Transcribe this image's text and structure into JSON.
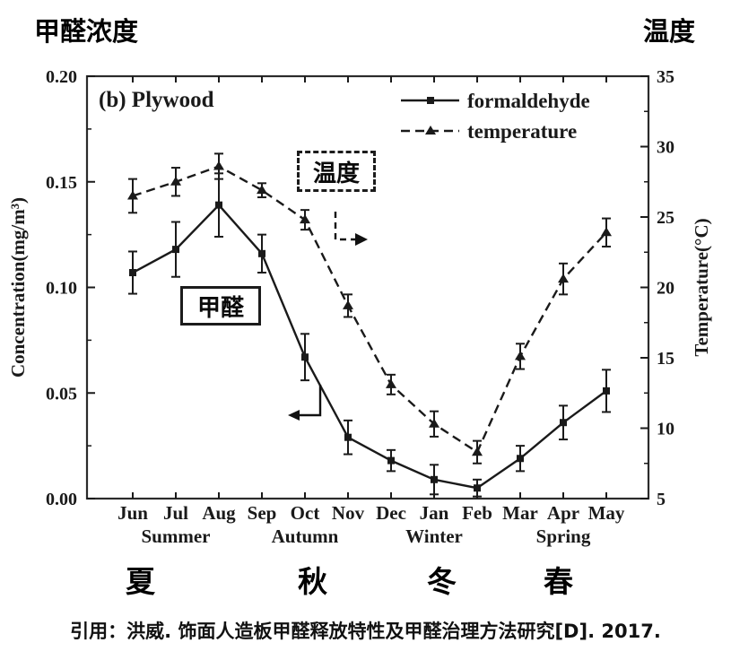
{
  "header": {
    "left_label": "甲醛浓度",
    "right_label": "温度"
  },
  "chart_data": {
    "type": "line",
    "title": "(b) Plywood",
    "categories": [
      "Jun",
      "Jul",
      "Aug",
      "Sep",
      "Oct",
      "Nov",
      "Dec",
      "Jan",
      "Feb",
      "Mar",
      "Apr",
      "May"
    ],
    "seasons_en": [
      {
        "label": "Summer",
        "span": [
          0,
          2
        ]
      },
      {
        "label": "Autumn",
        "span": [
          3,
          5
        ]
      },
      {
        "label": "Winter",
        "span": [
          6,
          8
        ]
      },
      {
        "label": "Spring",
        "span": [
          9,
          11
        ]
      }
    ],
    "y_left": {
      "label": "Concentration(mg/m³)",
      "min": 0,
      "max": 0.2,
      "ticks": [
        0.0,
        0.05,
        0.1,
        0.15,
        0.2
      ]
    },
    "y_right": {
      "label": "Temperature(°C)",
      "min": 5,
      "max": 35,
      "ticks": [
        5,
        10,
        15,
        20,
        25,
        30,
        35
      ]
    },
    "series": [
      {
        "name": "temperature",
        "axis": "right",
        "marker": "triangle",
        "line": "dashed",
        "values": [
          26.5,
          27.5,
          28.6,
          26.9,
          24.8,
          18.7,
          13.1,
          10.3,
          8.3,
          15.1,
          20.6,
          23.9
        ],
        "errors": [
          1.2,
          1.0,
          0.9,
          0.5,
          0.7,
          0.8,
          0.7,
          0.9,
          0.8,
          0.9,
          1.1,
          1.0
        ]
      },
      {
        "name": "formaldehyde",
        "axis": "left",
        "marker": "square",
        "line": "solid",
        "values": [
          0.107,
          0.118,
          0.139,
          0.116,
          0.067,
          0.029,
          0.018,
          0.009,
          0.005,
          0.019,
          0.036,
          0.051
        ],
        "errors": [
          0.01,
          0.013,
          0.015,
          0.009,
          0.011,
          0.008,
          0.005,
          0.007,
          0.004,
          0.006,
          0.008,
          0.01
        ]
      }
    ],
    "legend_position": "top-right",
    "grid": false
  },
  "annotations": {
    "temperature_box": "温度",
    "formaldehyde_box": "甲醛"
  },
  "seasons_cn": [
    "夏",
    "秋",
    "冬",
    "春"
  ],
  "citation": "引用：洪威. 饰面人造板甲醛释放特性及甲醛治理方法研究[D]. 2017."
}
